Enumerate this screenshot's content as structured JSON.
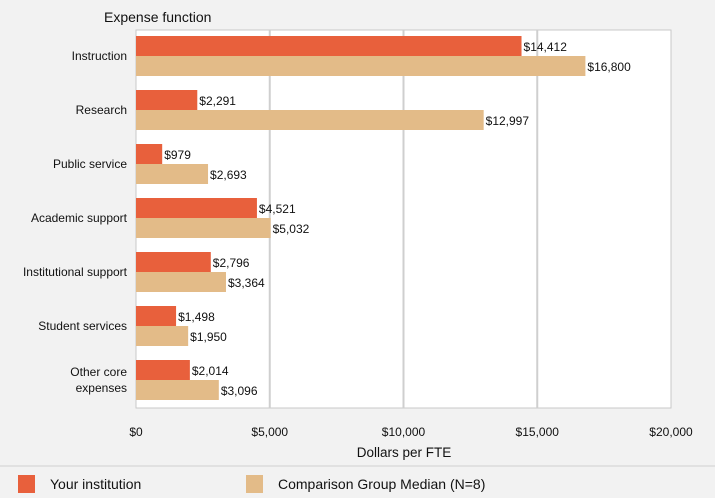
{
  "chart_data": {
    "type": "bar",
    "orientation": "horizontal",
    "category_axis_title": "Expense function",
    "xlabel": "Dollars per FTE",
    "xlim": [
      0,
      20000
    ],
    "xticks": [
      0,
      5000,
      10000,
      15000,
      20000
    ],
    "xtick_labels": [
      "$0",
      "$5,000",
      "$10,000",
      "$15,000",
      "$20,000"
    ],
    "grid": true,
    "legend_position": "bottom",
    "categories": [
      [
        "Instruction"
      ],
      [
        "Research"
      ],
      [
        "Public service"
      ],
      [
        "Academic support"
      ],
      [
        "Institutional support"
      ],
      [
        "Student services"
      ],
      [
        "Other core",
        "expenses"
      ]
    ],
    "series": [
      {
        "name": "Your institution",
        "color": "#e8603c",
        "values": [
          14412,
          2291,
          979,
          4521,
          2796,
          1498,
          2014
        ],
        "labels": [
          "$14,412",
          "$2,291",
          "$979",
          "$4,521",
          "$2,796",
          "$1,498",
          "$2,014"
        ]
      },
      {
        "name": "Comparison Group Median (N=8)",
        "color": "#e3bb88",
        "values": [
          16800,
          12997,
          2693,
          5032,
          3364,
          1950,
          3096
        ],
        "labels": [
          "$16,800",
          "$12,997",
          "$2,693",
          "$5,032",
          "$3,364",
          "$1,950",
          "$3,096"
        ]
      }
    ]
  }
}
